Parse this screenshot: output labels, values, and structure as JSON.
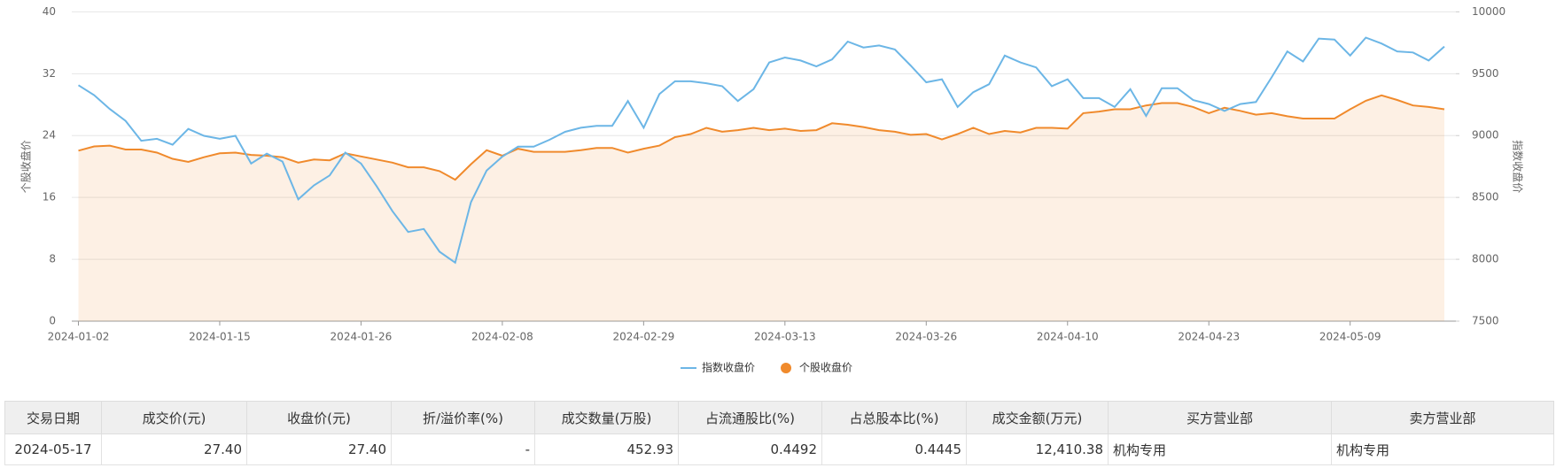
{
  "chart_data": {
    "type": "line",
    "categories": [
      "2024-01-02",
      null,
      null,
      null,
      null,
      null,
      null,
      null,
      null,
      "2024-01-15",
      null,
      null,
      null,
      null,
      null,
      null,
      null,
      null,
      "2024-01-26",
      null,
      null,
      null,
      null,
      null,
      null,
      null,
      null,
      "2024-02-08",
      null,
      null,
      null,
      null,
      null,
      null,
      null,
      null,
      "2024-02-29",
      null,
      null,
      null,
      null,
      null,
      null,
      null,
      null,
      "2024-03-13",
      null,
      null,
      null,
      null,
      null,
      null,
      null,
      null,
      "2024-03-26",
      null,
      null,
      null,
      null,
      null,
      null,
      null,
      null,
      "2024-04-10",
      null,
      null,
      null,
      null,
      null,
      null,
      null,
      null,
      "2024-04-23",
      null,
      null,
      null,
      null,
      null,
      null,
      null,
      null,
      "2024-05-09",
      null,
      null,
      null,
      null,
      null,
      null
    ],
    "series": [
      {
        "name": "指数收盘价",
        "color": "#6cb6e6",
        "axis": "y2",
        "values": [
          9407,
          9327,
          9215,
          9119,
          8958,
          8974,
          8926,
          9054,
          8998,
          8974,
          8998,
          8774,
          8854,
          8790,
          8485,
          8598,
          8678,
          8862,
          8774,
          8590,
          8389,
          8221,
          8245,
          8061,
          7973,
          8462,
          8718,
          8830,
          8910,
          8910,
          8966,
          9030,
          9063,
          9079,
          9079,
          9279,
          9063,
          9335,
          9439,
          9439,
          9423,
          9399,
          9279,
          9375,
          9591,
          9631,
          9607,
          9559,
          9615,
          9760,
          9712,
          9728,
          9696,
          9567,
          9431,
          9455,
          9231,
          9351,
          9415,
          9647,
          9591,
          9551,
          9399,
          9455,
          9303,
          9303,
          9231,
          9375,
          9159,
          9383,
          9383,
          9287,
          9255,
          9199,
          9255,
          9271,
          9471,
          9680,
          9599,
          9784,
          9776,
          9647,
          9792,
          9744,
          9680,
          9672,
          9607,
          9720
        ]
      },
      {
        "name": "个股收盘价",
        "color": "#f08a2c",
        "values": [
          22.05,
          22.6,
          22.7,
          22.2,
          22.2,
          21.8,
          21.0,
          20.6,
          21.2,
          21.7,
          21.8,
          21.5,
          21.4,
          21.2,
          20.5,
          20.9,
          20.8,
          21.7,
          21.3,
          20.9,
          20.5,
          19.9,
          19.9,
          19.4,
          18.3,
          20.3,
          22.1,
          21.4,
          22.3,
          21.9,
          21.9,
          21.9,
          22.1,
          22.4,
          22.4,
          21.8,
          22.3,
          22.7,
          23.8,
          24.2,
          25.0,
          24.5,
          24.7,
          25.0,
          24.7,
          24.9,
          24.6,
          24.7,
          25.6,
          25.4,
          25.1,
          24.7,
          24.5,
          24.1,
          24.2,
          23.5,
          24.2,
          25.0,
          24.2,
          24.6,
          24.4,
          25.0,
          25.0,
          24.9,
          26.9,
          27.1,
          27.4,
          27.4,
          27.9,
          28.2,
          28.2,
          27.7,
          26.9,
          27.6,
          27.2,
          26.7,
          26.9,
          26.5,
          26.2,
          26.2,
          26.2,
          27.4,
          28.5,
          29.2,
          28.6,
          27.9,
          27.7,
          27.4
        ]
      }
    ],
    "ylabel": "个股收盘价",
    "y2label": "指数收盘价",
    "ylim": [
      0,
      40
    ],
    "yticks": [
      0,
      8,
      16,
      24,
      32,
      40
    ],
    "y2lim": [
      7500,
      10000
    ],
    "y2ticks": [
      7500,
      8000,
      8500,
      9000,
      9500,
      10000
    ],
    "grid": true,
    "area": true,
    "legend": "bottom"
  },
  "table": {
    "headers": [
      "交易日期",
      "成交价(元)",
      "收盘价(元)",
      "折/溢价率(%)",
      "成交数量(万股)",
      "占流通股比(%)",
      "占总股本比(%)",
      "成交金额(万元)",
      "买方营业部",
      "卖方营业部"
    ],
    "rows": [
      [
        "2024-05-17",
        "27.40",
        "27.40",
        "-",
        "452.93",
        "0.4492",
        "0.4445",
        "12,410.38",
        "机构专用",
        "机构专用"
      ]
    ]
  }
}
